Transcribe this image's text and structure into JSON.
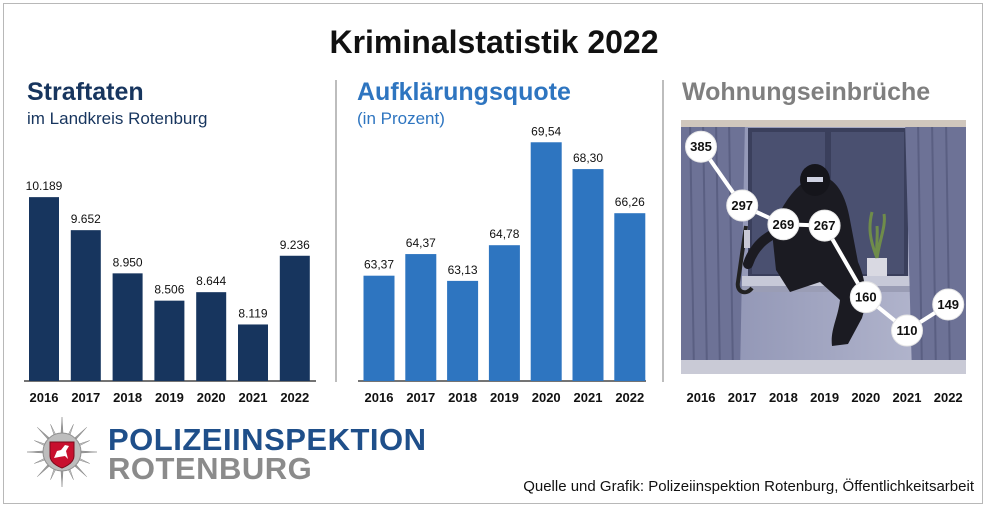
{
  "title": "Kriminalstatistik 2022",
  "logo": {
    "line1": "POLIZEIINSPEKTION",
    "line2": "ROTENBURG",
    "icon": "police-star-horse-icon"
  },
  "source": "Quelle und Grafik: Polizeiinspektion Rotenburg, Öffentlichkeitsarbeit",
  "colors": {
    "dark_blue": "#17355e",
    "mid_blue": "#2e75c0",
    "grey_title": "#7f7f7f"
  },
  "chart_data": [
    {
      "type": "bar",
      "title": "Straftaten",
      "subtitle": "im Landkreis Rotenburg",
      "categories": [
        "2016",
        "2017",
        "2018",
        "2019",
        "2020",
        "2021",
        "2022"
      ],
      "values": [
        10189,
        9652,
        8950,
        8506,
        8644,
        8119,
        9236
      ],
      "value_labels": [
        "10.189",
        "9.652",
        "8.950",
        "8.506",
        "8.644",
        "8.119",
        "9.236"
      ],
      "ylim": [
        7200,
        10500
      ],
      "grid": false
    },
    {
      "type": "bar",
      "title": "Aufklärungsquote",
      "subtitle": "(in Prozent)",
      "categories": [
        "2016",
        "2017",
        "2018",
        "2019",
        "2020",
        "2021",
        "2022"
      ],
      "values": [
        63.37,
        64.37,
        63.13,
        64.78,
        69.54,
        68.3,
        66.26
      ],
      "value_labels": [
        "63,37",
        "64,37",
        "63,13",
        "64,78",
        "69,54",
        "68,30",
        "66,26"
      ],
      "ylim": [
        58.5,
        70.2
      ],
      "grid": false
    },
    {
      "type": "line",
      "title": "Wohnungseinbrüche",
      "categories": [
        "2016",
        "2017",
        "2018",
        "2019",
        "2020",
        "2021",
        "2022"
      ],
      "values": [
        385,
        297,
        269,
        267,
        160,
        110,
        149
      ],
      "value_labels": [
        "385",
        "297",
        "269",
        "267",
        "160",
        "110",
        "149"
      ],
      "ylim": [
        45,
        425
      ],
      "grid": false,
      "background": "burglar-illustration"
    }
  ]
}
